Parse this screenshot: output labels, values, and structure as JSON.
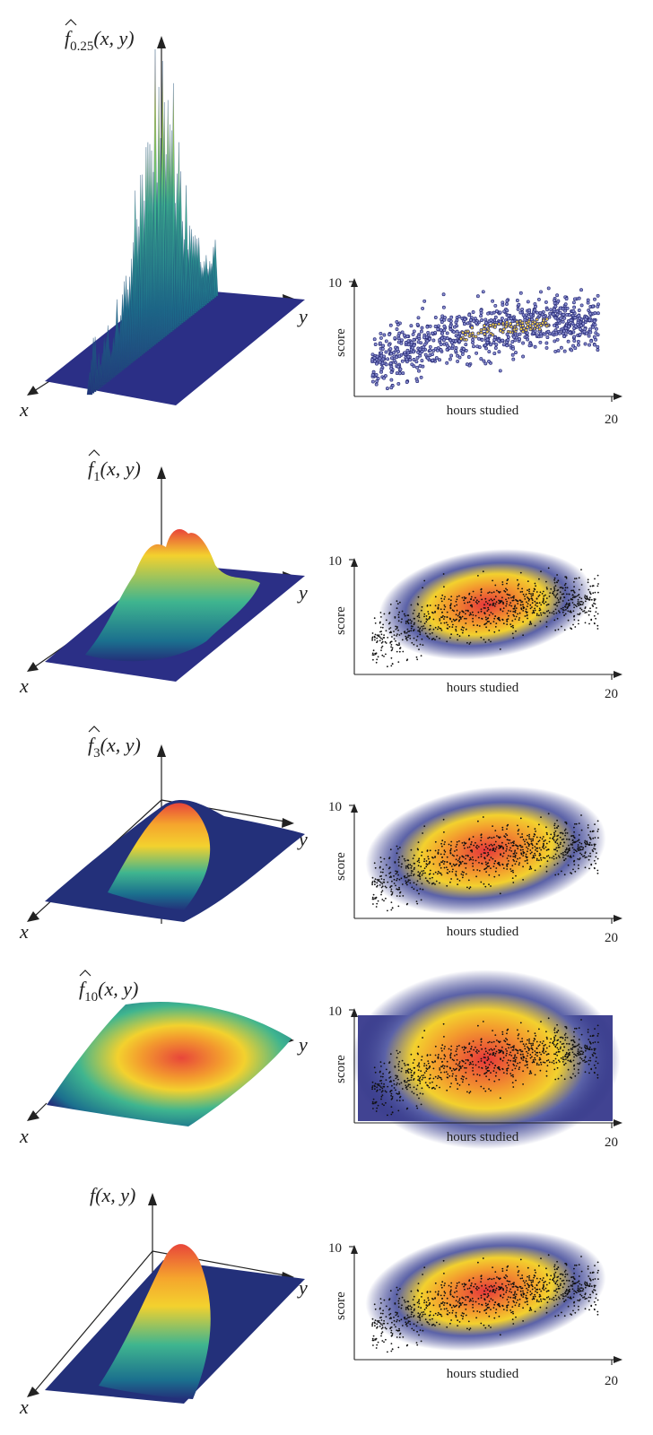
{
  "chart_data": [
    {
      "type": "surface",
      "function_label": {
        "base": "f",
        "hat": true,
        "subscript": "0.25",
        "args": "(x, y)"
      },
      "axes": {
        "x": "x",
        "y": "y"
      },
      "smoothing": "very spiky",
      "colors": [
        "#23307a",
        "#1b7f8f",
        "#3fb58f",
        "#c8dc3a",
        "#f6c22a",
        "#e6533a"
      ]
    },
    {
      "type": "scatter",
      "xlabel": "hours studied",
      "ylabel": "score",
      "xtick": "20",
      "ytick": "10",
      "xlim": [
        0,
        20
      ],
      "ylim": [
        0,
        10
      ],
      "bandwidth": 0.25,
      "point_style": "blue-outlined dots with yellow tint in dense core",
      "density_style": "none"
    },
    {
      "type": "surface",
      "function_label": {
        "base": "f",
        "hat": true,
        "subscript": "1",
        "args": "(x, y)"
      },
      "axes": {
        "x": "x",
        "y": "y"
      },
      "smoothing": "bumpy"
    },
    {
      "type": "heatmap-scatter",
      "xlabel": "hours studied",
      "ylabel": "score",
      "xtick": "20",
      "ytick": "10",
      "xlim": [
        0,
        20
      ],
      "ylim": [
        0,
        10
      ],
      "bandwidth": 1
    },
    {
      "type": "surface",
      "function_label": {
        "base": "f",
        "hat": true,
        "subscript": "3",
        "args": "(x, y)"
      },
      "axes": {
        "x": "x",
        "y": "y"
      },
      "smoothing": "smooth ridge"
    },
    {
      "type": "heatmap-scatter",
      "xlabel": "hours studied",
      "ylabel": "score",
      "xtick": "20",
      "ytick": "10",
      "xlim": [
        0,
        20
      ],
      "ylim": [
        0,
        10
      ],
      "bandwidth": 3
    },
    {
      "type": "surface",
      "function_label": {
        "base": "f",
        "hat": true,
        "subscript": "10",
        "args": "(x, y)"
      },
      "axes": {
        "x": "x",
        "y": "y"
      },
      "smoothing": "oversmoothed dome"
    },
    {
      "type": "heatmap-scatter",
      "xlabel": "hours studied",
      "ylabel": "score",
      "xtick": "20",
      "ytick": "10",
      "xlim": [
        0,
        20
      ],
      "ylim": [
        0,
        10
      ],
      "bandwidth": 10
    },
    {
      "type": "surface",
      "function_label": {
        "base": "f",
        "hat": false,
        "subscript": "",
        "args": "(x, y)"
      },
      "axes": {
        "x": "x",
        "y": "y"
      },
      "smoothing": "true density ridge"
    },
    {
      "type": "heatmap-scatter",
      "xlabel": "hours studied",
      "ylabel": "score",
      "xtick": "20",
      "ytick": "10",
      "xlim": [
        0,
        20
      ],
      "ylim": [
        0,
        10
      ],
      "bandwidth": "true"
    }
  ],
  "colors": {
    "deep_blue": "#23307a",
    "teal": "#1c7f90",
    "green": "#42b48a",
    "yellow": "#f3d12e",
    "orange": "#f39a2e",
    "red": "#e4463a",
    "axis": "#222222"
  }
}
